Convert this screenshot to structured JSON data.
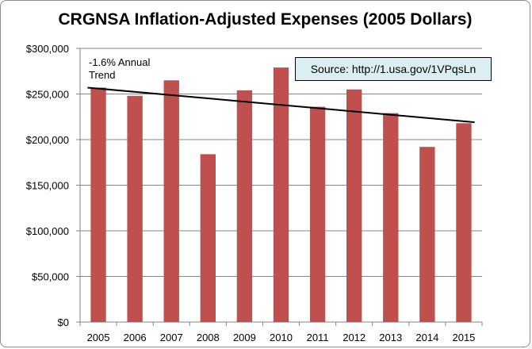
{
  "chart_data": {
    "type": "bar",
    "title": "CRGNSA Inflation-Adjusted Expenses (2005 Dollars)",
    "categories": [
      "2005",
      "2006",
      "2007",
      "2008",
      "2009",
      "2010",
      "2011",
      "2012",
      "2013",
      "2014",
      "2015"
    ],
    "values": [
      257000,
      248000,
      265000,
      184000,
      254000,
      279000,
      236000,
      255000,
      229000,
      192000,
      218000
    ],
    "ylim": [
      0,
      300000
    ],
    "yticks": [
      0,
      50000,
      100000,
      150000,
      200000,
      250000,
      300000
    ],
    "ytick_labels": [
      "$0",
      "$50,000",
      "$100,000",
      "$150,000",
      "$200,000",
      "$250,000",
      "$300,000"
    ],
    "xlabel": "",
    "ylabel": "",
    "grid": "horizontal",
    "legend": "none",
    "bar_color": "#c0504d",
    "trendline": {
      "start_value": 257000,
      "end_value": 219000,
      "color": "#000000",
      "label": "-1.6% Annual Trend"
    },
    "annotations": [
      {
        "text": "Source: http://1.usa.gov/1VPqsLn",
        "background": "#dbeef4"
      }
    ]
  }
}
